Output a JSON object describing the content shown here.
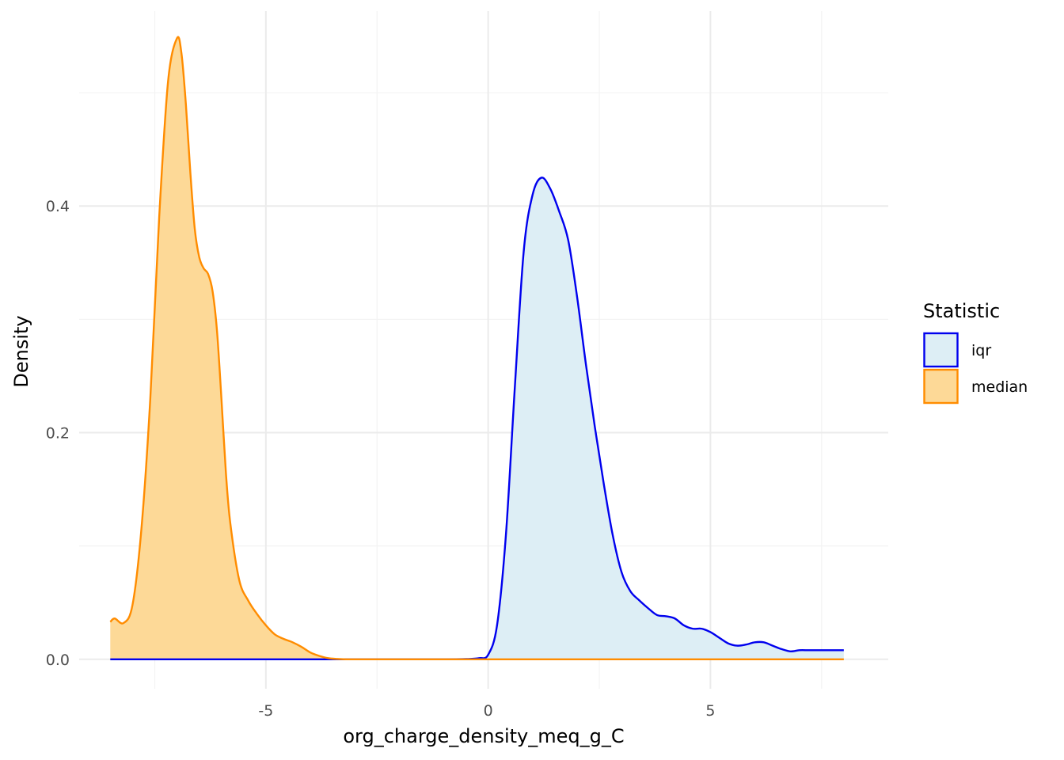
{
  "chart_data": {
    "type": "area",
    "xlabel": "org_charge_density_meq_g_C",
    "ylabel": "Density",
    "xlim": [
      -9.2,
      9.0
    ],
    "ylim": [
      -0.026,
      0.572
    ],
    "x_ticks": [
      -5,
      0,
      5
    ],
    "x_tick_labels": [
      "-5",
      "0",
      "5"
    ],
    "y_ticks": [
      0.0,
      0.2,
      0.4
    ],
    "y_tick_labels": [
      "0.0",
      "0.2",
      "0.4"
    ],
    "grid": true,
    "legend": {
      "title": "Statistic",
      "placement": "right"
    },
    "series": [
      {
        "name": "iqr",
        "line_color": "#0000ee",
        "fill_color": "#ddeef5",
        "x": [
          -8.5,
          -2.0,
          -1.0,
          -0.5,
          -0.2,
          0.0,
          0.2,
          0.4,
          0.6,
          0.8,
          1.0,
          1.2,
          1.4,
          1.6,
          1.8,
          2.0,
          2.2,
          2.4,
          2.6,
          2.8,
          3.0,
          3.2,
          3.4,
          3.6,
          3.8,
          4.0,
          4.2,
          4.4,
          4.6,
          4.8,
          5.0,
          5.2,
          5.4,
          5.6,
          5.8,
          6.0,
          6.2,
          6.4,
          6.6,
          6.8,
          7.0,
          7.2,
          7.4,
          7.6,
          7.8,
          8.0
        ],
        "y": [
          0.0,
          0.0,
          0.0,
          0.0002,
          0.001,
          0.004,
          0.03,
          0.11,
          0.24,
          0.36,
          0.41,
          0.425,
          0.415,
          0.395,
          0.37,
          0.32,
          0.26,
          0.205,
          0.155,
          0.11,
          0.077,
          0.06,
          0.052,
          0.045,
          0.039,
          0.038,
          0.036,
          0.03,
          0.027,
          0.027,
          0.024,
          0.019,
          0.014,
          0.012,
          0.013,
          0.015,
          0.015,
          0.012,
          0.009,
          0.007,
          0.008,
          0.008,
          0.008,
          0.008,
          0.008,
          0.008
        ]
      },
      {
        "name": "median",
        "line_color": "#ff8c00",
        "fill_color": "#fdd997",
        "x": [
          -8.5,
          -8.4,
          -8.2,
          -8.0,
          -7.8,
          -7.6,
          -7.4,
          -7.2,
          -7.0,
          -6.9,
          -6.8,
          -6.7,
          -6.6,
          -6.5,
          -6.4,
          -6.3,
          -6.2,
          -6.1,
          -6.0,
          -5.9,
          -5.8,
          -5.6,
          -5.4,
          -5.2,
          -5.0,
          -4.8,
          -4.6,
          -4.4,
          -4.2,
          -4.0,
          -3.8,
          -3.6,
          -3.4,
          -3.2,
          -3.0,
          -2.5,
          0.0,
          4.0,
          8.0
        ],
        "y": [
          0.033,
          0.036,
          0.032,
          0.048,
          0.115,
          0.23,
          0.39,
          0.51,
          0.548,
          0.535,
          0.49,
          0.43,
          0.38,
          0.355,
          0.345,
          0.34,
          0.325,
          0.29,
          0.23,
          0.165,
          0.12,
          0.07,
          0.052,
          0.04,
          0.03,
          0.022,
          0.018,
          0.015,
          0.011,
          0.006,
          0.003,
          0.001,
          0.0003,
          0.0,
          0.0,
          0.0,
          0.0,
          0.0,
          0.0
        ]
      }
    ]
  }
}
